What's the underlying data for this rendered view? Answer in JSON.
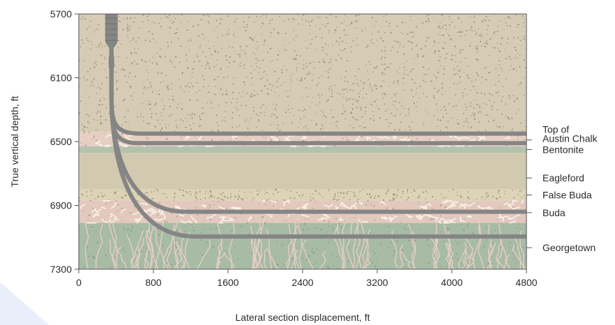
{
  "x_axis": {
    "title": "Lateral section displacement, ft",
    "ticks": [
      "0",
      "800",
      "1600",
      "2400",
      "3200",
      "4000",
      "4800"
    ],
    "range": [
      0,
      4800
    ]
  },
  "y_axis": {
    "title": "True vertical depth, ft",
    "ticks": [
      "5700",
      "6100",
      "6500",
      "6900",
      "7300"
    ],
    "range": [
      5700,
      7300
    ]
  },
  "layers": [
    {
      "name": "Top of Austin Chalk",
      "label_lines": [
        "Top of",
        "Austin Chalk"
      ],
      "top": 6440,
      "bottom": 6530,
      "color": "#e6cfc2",
      "texture": "cracks"
    },
    {
      "name": "Bentonite",
      "label_lines": [
        "Bentonite"
      ],
      "top": 6530,
      "bottom": 6570,
      "color": "#b3c2ad",
      "texture": "none"
    },
    {
      "name": "Eagleford",
      "label_lines": [
        "Eagleford"
      ],
      "top": 6570,
      "bottom": 6800,
      "color": "#d2cab0",
      "texture": "none"
    },
    {
      "name": "False Buda",
      "label_lines": [
        "False Buda"
      ],
      "top": 6800,
      "bottom": 6870,
      "color": "#ddd3b6",
      "texture": "dots"
    },
    {
      "name": "Buda",
      "label_lines": [
        "Buda"
      ],
      "top": 6870,
      "bottom": 7010,
      "color": "#e2c8bd",
      "texture": "cracks"
    },
    {
      "name": "Georgetown",
      "label_lines": [
        "Georgetown"
      ],
      "top": 7010,
      "bottom": 7300,
      "color": "#a7bba5",
      "texture": "roots"
    }
  ],
  "top_layer_color": "#d6ccb6",
  "laterals": [
    {
      "depth": 6450,
      "kop_x": 650
    },
    {
      "depth": 6510,
      "kop_x": 650
    },
    {
      "depth": 6940,
      "kop_x": 1150
    },
    {
      "depth": 7095,
      "kop_x": 1250
    }
  ],
  "well_x": 350,
  "well_color": "#858585"
}
